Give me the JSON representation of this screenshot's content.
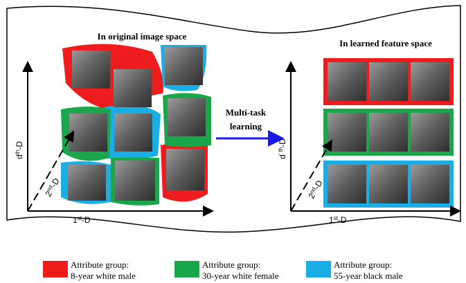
{
  "left_panel": {
    "title": "In original image space",
    "x_axis": {
      "base": "1",
      "sup": "st",
      "suffix": "-D"
    },
    "z_axis": {
      "base": "2",
      "sup": "nd",
      "suffix": "-D"
    },
    "y_axis": {
      "base": "d",
      "sup": "th",
      "suffix": "-D"
    }
  },
  "arrow_label": {
    "line1": "Multi-task",
    "line2": "learning"
  },
  "right_panel": {
    "title": "In learned feature space",
    "x_axis": {
      "base": "1",
      "sup": "st",
      "suffix": "-D"
    },
    "z_axis": {
      "base": "2",
      "sup": "nd",
      "suffix": "-D"
    },
    "y_axis": {
      "base": "d",
      "sup": "' th",
      "suffix": "-D"
    }
  },
  "legend": [
    {
      "color": "#ee1c1c",
      "line1": "Attribute group:",
      "line2": "8-year white male"
    },
    {
      "color": "#1aa64a",
      "line1": "Attribute group:",
      "line2": "30-year white female"
    },
    {
      "color": "#1aaee6",
      "line1": "Attribute group:",
      "line2": "55-year black male"
    }
  ]
}
